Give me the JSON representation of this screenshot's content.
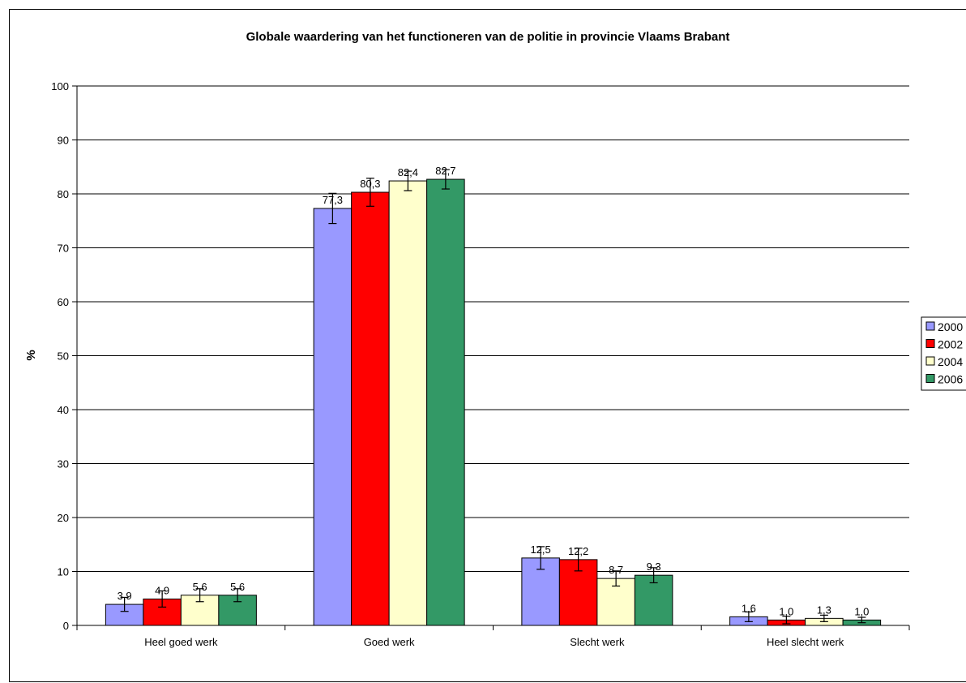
{
  "chart_data": {
    "type": "bar",
    "title": "Globale waardering van het functioneren van de politie in provincie Vlaams Brabant",
    "xlabel": "",
    "ylabel": "%",
    "ylim": [
      0,
      100
    ],
    "yticks": [
      "0",
      "10",
      "20",
      "30",
      "40",
      "50",
      "60",
      "70",
      "80",
      "90",
      "100"
    ],
    "grid": true,
    "legend_position": "right",
    "categories": [
      "Heel goed werk",
      "Goed werk",
      "Slecht werk",
      "Heel slecht werk"
    ],
    "series": [
      {
        "name": "2000",
        "color": "#9999ff",
        "values": [
          3.9,
          77.3,
          12.5,
          1.6
        ],
        "labels": [
          "3,9",
          "77,3",
          "12,5",
          "1,6"
        ],
        "err": [
          1.3,
          2.8,
          2.1,
          0.9
        ]
      },
      {
        "name": "2002",
        "color": "#ff0000",
        "values": [
          4.9,
          80.3,
          12.2,
          1.0
        ],
        "labels": [
          "4,9",
          "80,3",
          "12,2",
          "1,0"
        ],
        "err": [
          1.5,
          2.6,
          2.1,
          0.7
        ]
      },
      {
        "name": "2004",
        "color": "#ffffcc",
        "values": [
          5.6,
          82.4,
          8.7,
          1.3
        ],
        "labels": [
          "5,6",
          "82,4",
          "8,7",
          "1,3"
        ],
        "err": [
          1.2,
          1.8,
          1.4,
          0.6
        ]
      },
      {
        "name": "2006",
        "color": "#339966",
        "values": [
          5.6,
          82.7,
          9.3,
          1.0
        ],
        "labels": [
          "5,6",
          "82,7",
          "9,3",
          "1,0"
        ],
        "err": [
          1.2,
          1.8,
          1.4,
          0.5
        ]
      }
    ]
  }
}
